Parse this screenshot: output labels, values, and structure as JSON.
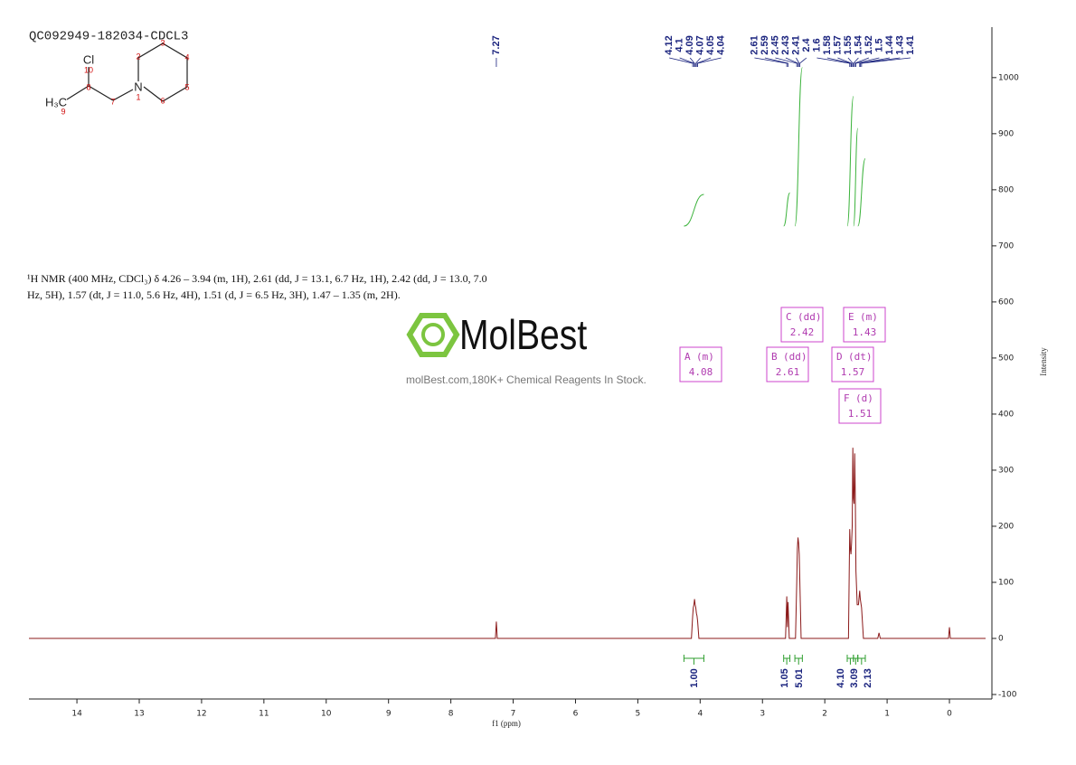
{
  "sample": "QC092949-182034-CDCL3",
  "structure": {
    "atoms": [
      "Cl",
      "H₃C",
      "N"
    ],
    "numbers": [
      "10",
      "8",
      "9",
      "7",
      "1",
      "2",
      "3",
      "4",
      "5",
      "6"
    ]
  },
  "description": [
    "¹H NMR (400 MHz, CDCl₃) δ 4.26 – 3.94 (m, 1H), 2.61 (dd, J = 13.1, 6.7 Hz, 1H), 2.42 (dd, J = 13.0, 7.0",
    "Hz, 5H), 1.57 (dt, J = 11.0, 5.6 Hz, 4H), 1.51 (d, J = 6.5 Hz, 3H), 1.47 – 1.35 (m, 2H)."
  ],
  "watermark": {
    "brand": "MolBest",
    "tagline": "molBest.com,180K+ Chemical Reagents In Stock."
  },
  "chart_data": {
    "type": "line",
    "xlabel": "f1 (ppm)",
    "ylabel": "Intensity",
    "xlim": [
      14.77,
      -0.58
    ],
    "xticks": [
      14,
      13,
      12,
      11,
      10,
      9,
      8,
      7,
      6,
      5,
      4,
      3,
      2,
      1,
      0
    ],
    "ylim": [
      -108,
      1090
    ],
    "yticks": [
      -100,
      0,
      100,
      200,
      300,
      400,
      500,
      600,
      700,
      800,
      900,
      1000
    ],
    "series": [
      {
        "name": "spectrum",
        "color": "#8b1a1a",
        "x": [
          14.77,
          7.285,
          7.27,
          7.255,
          4.14,
          4.12,
          4.11,
          4.1,
          4.09,
          4.08,
          4.07,
          4.06,
          4.05,
          4.04,
          4.02,
          2.63,
          2.61,
          2.6,
          2.59,
          2.57,
          2.47,
          2.45,
          2.44,
          2.43,
          2.42,
          2.41,
          2.4,
          2.38,
          1.62,
          1.6,
          1.59,
          1.58,
          1.57,
          1.56,
          1.55,
          1.54,
          1.53,
          1.52,
          1.51,
          1.5,
          1.48,
          1.46,
          1.44,
          1.43,
          1.41,
          1.38,
          1.15,
          1.13,
          1.11,
          0.015,
          0,
          -0.015,
          -0.58
        ],
        "values": [
          0,
          0,
          30,
          0,
          0,
          40,
          55,
          60,
          70,
          60,
          55,
          45,
          40,
          30,
          0,
          0,
          75,
          20,
          65,
          0,
          0,
          100,
          160,
          180,
          170,
          150,
          100,
          0,
          0,
          195,
          160,
          150,
          170,
          200,
          340,
          250,
          240,
          330,
          250,
          120,
          60,
          60,
          85,
          70,
          55,
          0,
          0,
          10,
          0,
          0,
          20,
          0,
          0
        ]
      }
    ],
    "peak_labels": [
      7.27,
      4.12,
      4.1,
      4.09,
      4.07,
      4.05,
      4.04,
      2.61,
      2.59,
      2.45,
      2.43,
      2.41,
      2.4,
      1.6,
      1.58,
      1.57,
      1.55,
      1.54,
      1.52,
      1.5,
      1.44,
      1.43,
      1.41
    ],
    "integrals": [
      {
        "range": [
          4.26,
          3.94
        ],
        "value": 1,
        "label": "1.00"
      },
      {
        "range": [
          2.66,
          2.56
        ],
        "value": 1.05,
        "label": "1.05"
      },
      {
        "range": [
          2.48,
          2.36
        ],
        "value": 5.01,
        "label": "5.01"
      },
      {
        "range": [
          1.64,
          1.54
        ],
        "value": 4.1,
        "label": "4.10"
      },
      {
        "range": [
          1.54,
          1.47
        ],
        "value": 3.09,
        "label": "3.09"
      },
      {
        "range": [
          1.47,
          1.35
        ],
        "value": 2.13,
        "label": "2.13"
      }
    ],
    "multiplets": [
      {
        "name": "A",
        "mult": "(m)",
        "shift": 4.08
      },
      {
        "name": "B",
        "mult": "(dd)",
        "shift": 2.61
      },
      {
        "name": "C",
        "mult": "(dd)",
        "shift": 2.42
      },
      {
        "name": "D",
        "mult": "(dt)",
        "shift": 1.57
      },
      {
        "name": "E",
        "mult": "(m)",
        "shift": 1.43
      },
      {
        "name": "F",
        "mult": "(d)",
        "shift": 1.51
      }
    ]
  }
}
